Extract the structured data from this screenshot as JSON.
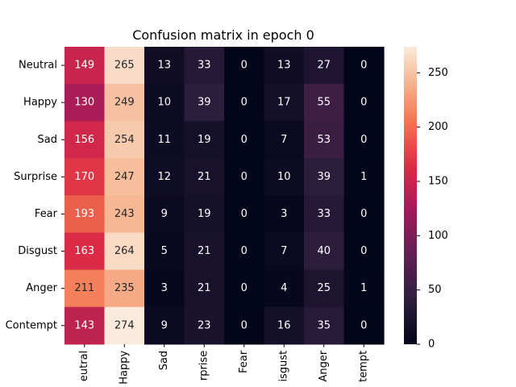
{
  "chart_data": {
    "type": "heatmap",
    "title": "Confusion matrix in epoch 0",
    "row_labels": [
      "Neutral",
      "Happy",
      "Sad",
      "Surprise",
      "Fear",
      "Disgust",
      "Anger",
      "Contempt"
    ],
    "col_labels": [
      "eutral",
      "Happy",
      "Sad",
      "rprise",
      "Fear",
      "isgust",
      "Anger",
      "tempt"
    ],
    "values": [
      [
        149,
        265,
        13,
        33,
        0,
        13,
        27,
        0
      ],
      [
        130,
        249,
        10,
        39,
        0,
        17,
        55,
        0
      ],
      [
        156,
        254,
        11,
        19,
        0,
        7,
        53,
        0
      ],
      [
        170,
        247,
        12,
        21,
        0,
        10,
        39,
        1
      ],
      [
        193,
        243,
        9,
        19,
        0,
        3,
        33,
        0
      ],
      [
        163,
        264,
        5,
        21,
        0,
        7,
        40,
        0
      ],
      [
        211,
        235,
        3,
        21,
        0,
        4,
        25,
        1
      ],
      [
        143,
        274,
        9,
        23,
        0,
        16,
        35,
        0
      ]
    ],
    "colorbar": {
      "min": 0,
      "max": 274,
      "ticks": [
        "0",
        "50",
        "100",
        "150",
        "200",
        "250"
      ],
      "colormap": "rocket"
    }
  }
}
